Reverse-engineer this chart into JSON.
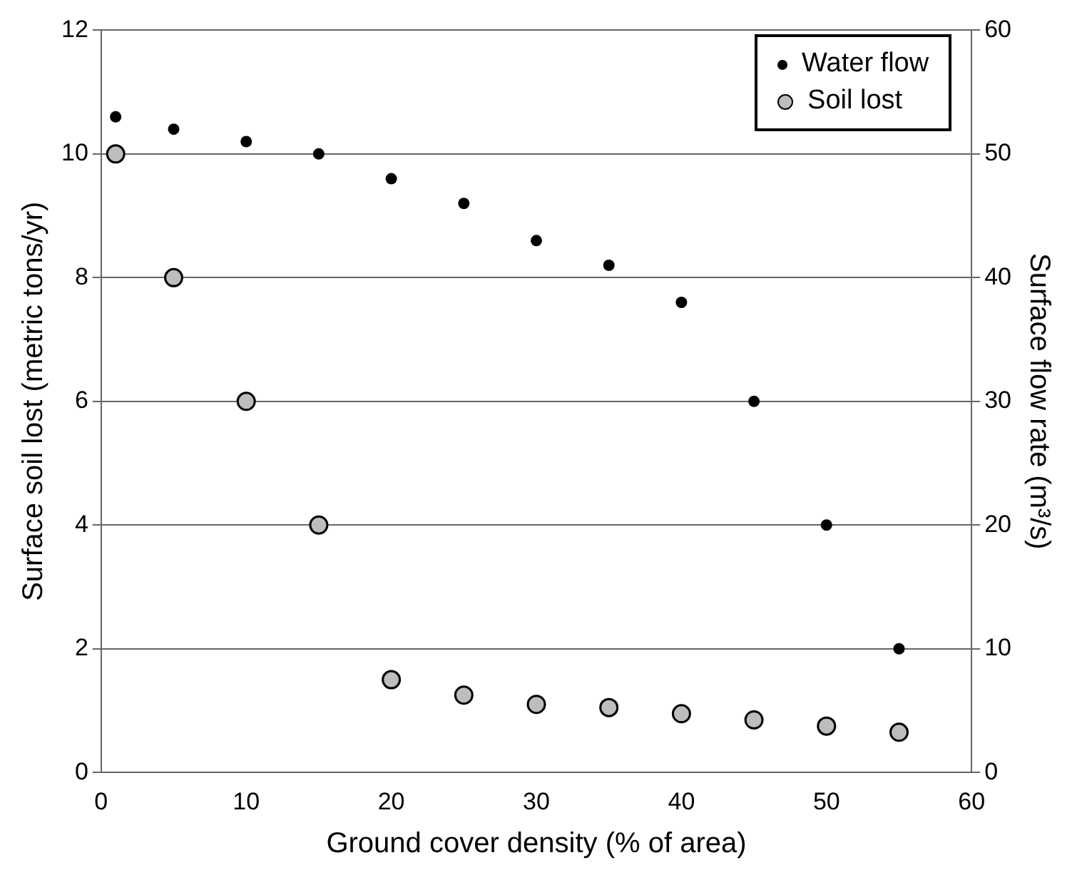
{
  "chart_data": {
    "type": "scatter",
    "xlabel": "Ground cover density (% of area)",
    "ylabel": "Surface soil lost (metric tons/yr)",
    "y2label": "Surface flow rate (m³/s)",
    "x": [
      1,
      5,
      10,
      15,
      20,
      25,
      30,
      35,
      40,
      45,
      50,
      55
    ],
    "series": [
      {
        "name": "Water flow",
        "color": "#000000",
        "axis": "y2",
        "values": [
          53,
          52,
          51,
          50,
          48,
          46,
          43,
          41,
          38,
          30,
          20,
          10
        ]
      },
      {
        "name": "Soil lost",
        "color": "#bdbdbd",
        "axis": "y",
        "values": [
          10,
          8,
          6,
          4,
          1.5,
          1.25,
          1.1,
          1.05,
          0.95,
          0.85,
          0.75,
          0.65
        ]
      }
    ],
    "xlim": [
      0,
      60
    ],
    "xticks": [
      0,
      10,
      20,
      30,
      40,
      50,
      60
    ],
    "ylim": [
      0,
      12
    ],
    "yticks": [
      0,
      2,
      4,
      6,
      8,
      10,
      12
    ],
    "y2lim": [
      0,
      60
    ],
    "y2ticks": [
      0,
      10,
      20,
      30,
      40,
      50,
      60
    ],
    "grid": "y",
    "legend": "top right",
    "marker": "circle"
  }
}
